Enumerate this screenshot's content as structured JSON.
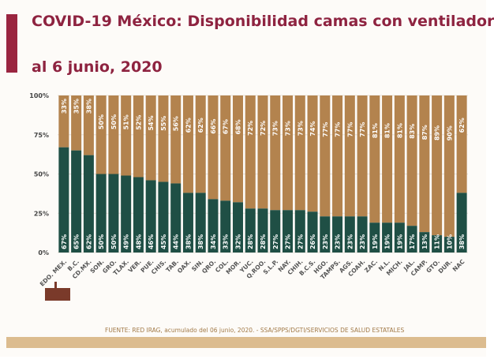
{
  "title_line1": "COVID-19 México: Disponibilidad camas con ventilador",
  "title_line2": "al 6 junio, 2020",
  "footer": "FUENTE: RED IRAG, acumulado del 06 junio, 2020. -  SSA/SPPS/DGTI/SERVICIOS DE SALUD ESTATALES",
  "colors": {
    "occupied": "#1f4f45",
    "available": "#b3834e",
    "title": "#8e2340",
    "band": "#dcbc8f"
  },
  "chart_data": {
    "type": "bar",
    "stacked": true,
    "categories": [
      "EDO. MEX.",
      "B.C.",
      "CD.MX.",
      "SON.",
      "GRO.",
      "TLAX.",
      "VER.",
      "PUE.",
      "CHIS.",
      "TAB.",
      "OAX.",
      "SIN.",
      "QRO.",
      "COL.",
      "MOR.",
      "YUC.",
      "Q.ROO.",
      "S.L.P.",
      "NAY.",
      "CHIH.",
      "B.C.S.",
      "HGO.",
      "TAMPS.",
      "AGS.",
      "COAH.",
      "ZAC.",
      "N.L.",
      "MICH.",
      "JAL.",
      "CAMP.",
      "GTO.",
      "DUR.",
      "NAC"
    ],
    "series": [
      {
        "values": [
          67,
          65,
          62,
          50,
          50,
          49,
          48,
          46,
          45,
          44,
          38,
          38,
          34,
          33,
          32,
          28,
          28,
          27,
          27,
          27,
          26,
          23,
          23,
          23,
          23,
          19,
          19,
          19,
          17,
          13,
          11,
          10,
          38
        ]
      },
      {
        "values": [
          33,
          35,
          38,
          50,
          50,
          51,
          52,
          54,
          55,
          56,
          62,
          62,
          66,
          67,
          68,
          72,
          72,
          73,
          73,
          73,
          74,
          77,
          77,
          77,
          77,
          81,
          81,
          81,
          83,
          87,
          89,
          90,
          62
        ]
      }
    ],
    "yticks": [
      "0%",
      "25%",
      "50%",
      "75%",
      "100%"
    ],
    "ylim": [
      0,
      100
    ],
    "grid": true
  }
}
